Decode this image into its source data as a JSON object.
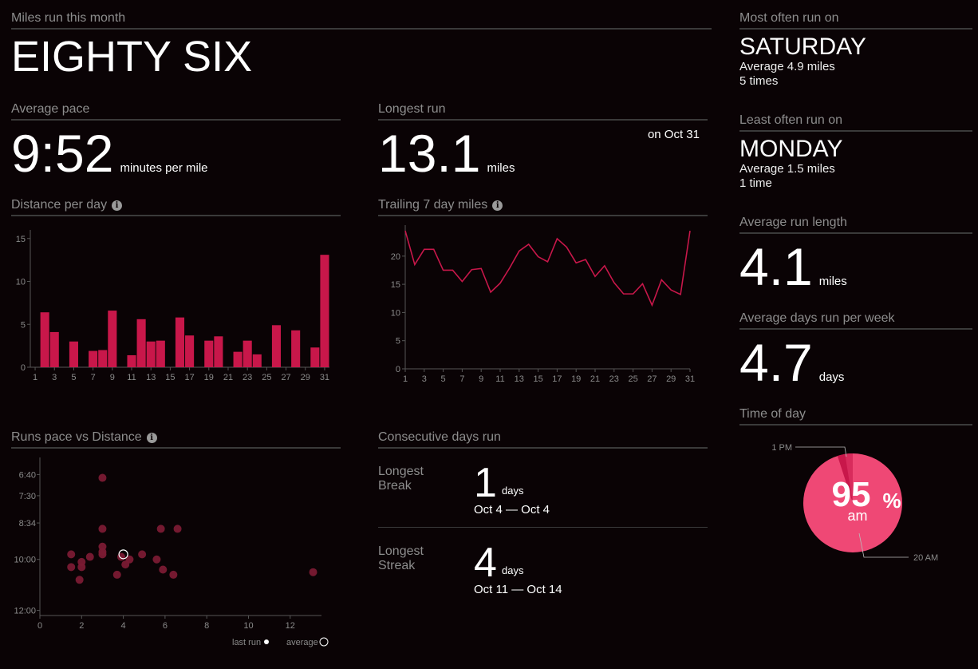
{
  "miles_month": {
    "title": "Miles run this month",
    "value": "EIGHTY SIX"
  },
  "avg_pace": {
    "title": "Average pace",
    "value": "9:52",
    "unit": "minutes per mile"
  },
  "longest_run": {
    "title": "Longest run",
    "value": "13.1",
    "unit": "miles",
    "date": "on Oct 31"
  },
  "most_often": {
    "title": "Most often run on",
    "day": "SATURDAY",
    "avg": "Average 4.9 miles",
    "count": "5 times"
  },
  "least_often": {
    "title": "Least often run on",
    "day": "MONDAY",
    "avg": "Average 1.5 miles",
    "count": "1 time"
  },
  "avg_run_length": {
    "title": "Average run length",
    "value": "4.1",
    "unit": "miles"
  },
  "avg_days_week": {
    "title": "Average days run per week",
    "value": "4.7",
    "unit": "days"
  },
  "time_of_day": {
    "title": "Time of day",
    "percent": "95",
    "pct_sign": "%",
    "period": "am",
    "label_pm": "1 PM",
    "label_am": "20 AM"
  },
  "consecutive": {
    "title": "Consecutive days run",
    "break_label": "Longest Break",
    "break_value": "1",
    "break_unit": "days",
    "break_range": "Oct 4 — Oct 4",
    "streak_label": "Longest Streak",
    "streak_value": "4",
    "streak_unit": "days",
    "streak_range": "Oct 11 — Oct 14"
  },
  "colors": {
    "accent": "#c8174a",
    "scatter": "#7a1a33",
    "pie_main": "#ef4875",
    "pie_dark": "#c8174a",
    "pie_mid": "#d82b5c"
  },
  "chart_data": [
    {
      "type": "bar",
      "title": "Distance per day",
      "x": [
        1,
        2,
        3,
        4,
        5,
        6,
        7,
        8,
        9,
        10,
        11,
        12,
        13,
        14,
        15,
        16,
        17,
        18,
        19,
        20,
        21,
        22,
        23,
        24,
        25,
        26,
        27,
        28,
        29,
        30,
        31
      ],
      "values": [
        0,
        6.4,
        4.1,
        0,
        3.0,
        0,
        1.9,
        2.0,
        6.6,
        0,
        1.4,
        5.6,
        3.0,
        3.1,
        0,
        5.8,
        3.7,
        0,
        3.1,
        3.6,
        0,
        1.8,
        3.1,
        1.5,
        0,
        4.9,
        0,
        4.3,
        0,
        2.3,
        13.1
      ],
      "xticks": [
        1,
        3,
        5,
        7,
        9,
        11,
        13,
        15,
        17,
        19,
        21,
        23,
        25,
        27,
        29,
        31
      ],
      "yticks": [
        0,
        5,
        10,
        15
      ],
      "ylim": [
        0,
        16
      ]
    },
    {
      "type": "line",
      "title": "Trailing 7 day miles",
      "x": [
        1,
        2,
        3,
        4,
        5,
        6,
        7,
        8,
        9,
        10,
        11,
        12,
        13,
        14,
        15,
        16,
        17,
        18,
        19,
        20,
        21,
        22,
        23,
        24,
        25,
        26,
        27,
        28,
        29,
        30,
        31
      ],
      "values": [
        24.5,
        18.5,
        21.2,
        21.2,
        17.5,
        17.5,
        15.5,
        17.6,
        17.8,
        13.6,
        15.2,
        17.9,
        20.9,
        22.1,
        19.9,
        19.0,
        23.1,
        21.6,
        18.8,
        19.4,
        16.4,
        18.3,
        15.3,
        13.3,
        13.3,
        15.1,
        11.3,
        15.8,
        14.0,
        13.2,
        24.5
      ],
      "xticks": [
        1,
        3,
        5,
        7,
        9,
        11,
        13,
        15,
        17,
        19,
        21,
        23,
        25,
        27,
        29,
        31
      ],
      "yticks": [
        0,
        5,
        10,
        15,
        20
      ],
      "ylim": [
        0,
        25.5
      ]
    },
    {
      "type": "scatter",
      "title": "Runs pace vs Distance",
      "xticks": [
        0,
        2,
        4,
        6,
        8,
        10,
        12
      ],
      "ytick_labels": [
        "6:40",
        "7:30",
        "8:34",
        "10:00",
        "12:00"
      ],
      "points": [
        [
          1.5,
          9.8
        ],
        [
          1.5,
          10.3
        ],
        [
          1.9,
          10.8
        ],
        [
          2.0,
          10.1
        ],
        [
          2.0,
          10.3
        ],
        [
          2.4,
          9.9
        ],
        [
          3.0,
          6.8
        ],
        [
          3.0,
          8.8
        ],
        [
          3.0,
          9.5
        ],
        [
          3.0,
          9.7
        ],
        [
          3.0,
          9.8
        ],
        [
          3.7,
          10.6
        ],
        [
          3.9,
          9.9
        ],
        [
          4.1,
          10.2
        ],
        [
          4.3,
          10.0
        ],
        [
          4.9,
          9.8
        ],
        [
          5.6,
          10.0
        ],
        [
          5.8,
          8.8
        ],
        [
          5.9,
          10.4
        ],
        [
          6.4,
          10.6
        ],
        [
          6.6,
          8.8
        ],
        [
          13.1,
          10.5
        ]
      ],
      "average": [
        4.0,
        9.8
      ],
      "xlim": [
        0,
        13.5
      ],
      "ylim": [
        6.0,
        12.2
      ],
      "legend_last": "last run",
      "legend_avg": "average"
    },
    {
      "type": "pie",
      "title": "Time of day",
      "slices": [
        {
          "label": "am",
          "value": 95
        },
        {
          "label": "pm",
          "value": 5
        }
      ]
    }
  ]
}
